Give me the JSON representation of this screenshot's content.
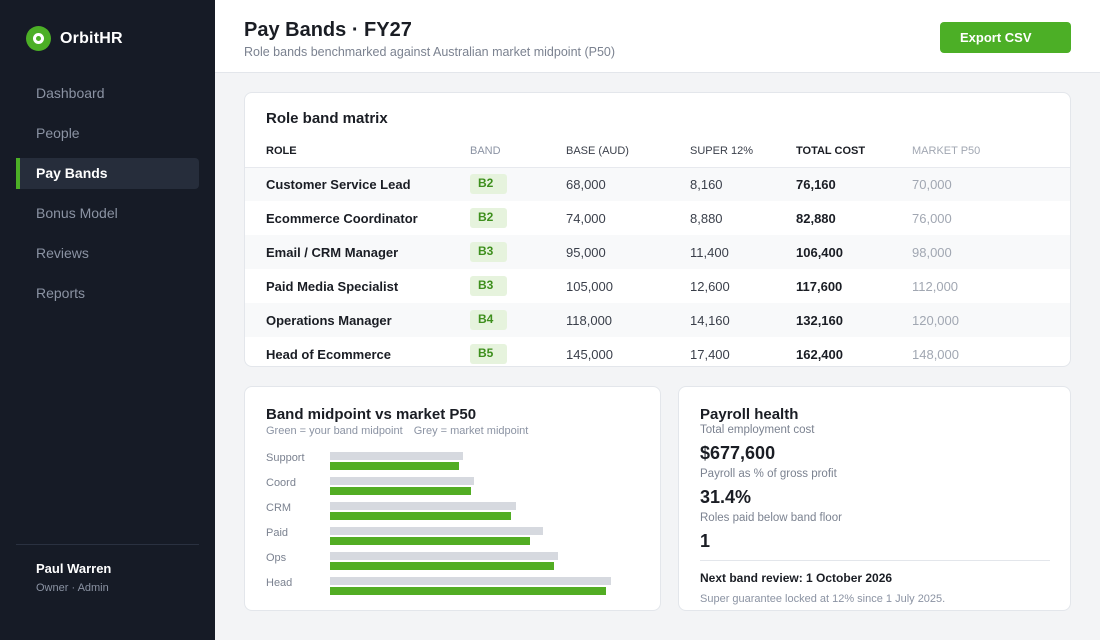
{
  "app": {
    "name": "OrbitHR"
  },
  "sidebar": {
    "items": [
      {
        "label": "Dashboard",
        "active": false
      },
      {
        "label": "People",
        "active": false
      },
      {
        "label": "Pay Bands",
        "active": true
      },
      {
        "label": "Bonus Model",
        "active": false
      },
      {
        "label": "Reviews",
        "active": false
      },
      {
        "label": "Reports",
        "active": false
      }
    ],
    "user": {
      "name": "Paul Warren",
      "role": "Owner · Admin"
    }
  },
  "header": {
    "title": "Pay Bands · FY27",
    "subtitle": "Role bands benchmarked against Australian market midpoint (P50)",
    "export_label": "Export CSV"
  },
  "matrix": {
    "title": "Role band matrix",
    "columns": [
      "ROLE",
      "BAND",
      "BASE (AUD)",
      "SUPER 12%",
      "TOTAL COST",
      "MARKET P50"
    ],
    "rows": [
      {
        "role": "Customer Service Lead",
        "band": "B2",
        "base": "68,000",
        "super": "8,160",
        "total": "76,160",
        "market": "70,000"
      },
      {
        "role": "Ecommerce Coordinator",
        "band": "B2",
        "base": "74,000",
        "super": "8,880",
        "total": "82,880",
        "market": "76,000"
      },
      {
        "role": "Email / CRM Manager",
        "band": "B3",
        "base": "95,000",
        "super": "11,400",
        "total": "106,400",
        "market": "98,000"
      },
      {
        "role": "Paid Media Specialist",
        "band": "B3",
        "base": "105,000",
        "super": "12,600",
        "total": "117,600",
        "market": "112,000"
      },
      {
        "role": "Operations Manager",
        "band": "B4",
        "base": "118,000",
        "super": "14,160",
        "total": "132,160",
        "market": "120,000"
      },
      {
        "role": "Head of Ecommerce",
        "band": "B5",
        "base": "145,000",
        "super": "17,400",
        "total": "162,400",
        "market": "148,000"
      }
    ]
  },
  "band_chart": {
    "title": "Band midpoint vs market P50",
    "legend_mine": "Green = your band midpoint",
    "legend_market": "Grey = market midpoint",
    "colors": {
      "mine": "#52ad23",
      "market": "#d6d9df"
    }
  },
  "chart_data": {
    "type": "bar",
    "categories": [
      "Support",
      "Coord",
      "CRM",
      "Paid",
      "Ops",
      "Head"
    ],
    "series": [
      {
        "name": "Grey = market midpoint",
        "values": [
          70000,
          76000,
          98000,
          112000,
          120000,
          148000
        ]
      },
      {
        "name": "Green = your band midpoint",
        "values": [
          68000,
          74000,
          95000,
          105000,
          118000,
          145000
        ]
      }
    ],
    "xlim": [
      0,
      150000
    ]
  },
  "health": {
    "title": "Payroll health",
    "total_cost_label": "Total employment cost",
    "total_cost_value": "$677,600",
    "payroll_pct_label": "Payroll as % of gross profit",
    "payroll_pct_value": "31.4%",
    "below_floor_label": "Roles paid below band floor",
    "below_floor_value": "1",
    "next_review": "Next band review: 1 October 2026",
    "footnote": "Super guarantee locked at 12% since 1 July 2025."
  },
  "colors": {
    "accent": "#4caf26",
    "sidebar": "#161b26"
  }
}
